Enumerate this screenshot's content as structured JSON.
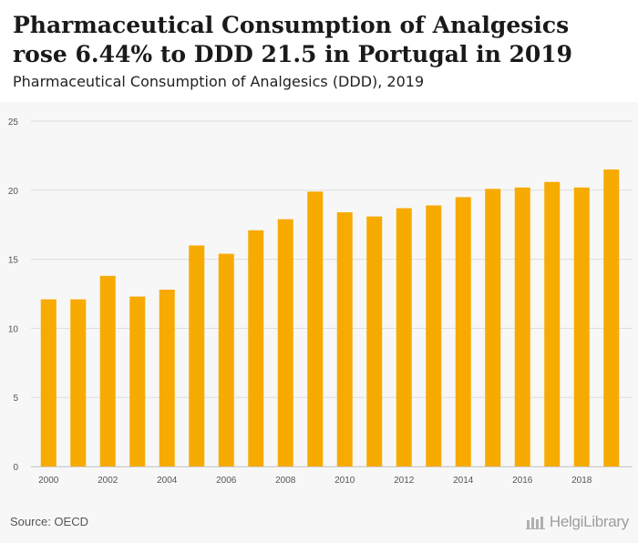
{
  "header": {
    "title": "Pharmaceutical Consumption of Analgesics rose 6.44% to DDD 21.5 in Portugal in 2019",
    "subtitle": "Pharmaceutical Consumption of Analgesics (DDD), 2019"
  },
  "footer": {
    "source": "Source: OECD",
    "brand": "HelgiLibrary"
  },
  "colors": {
    "bar": "#F7AA00",
    "grid": "#dddddd",
    "axis_text": "#555555"
  },
  "chart_data": {
    "type": "bar",
    "categories": [
      "2000",
      "2001",
      "2002",
      "2003",
      "2004",
      "2005",
      "2006",
      "2007",
      "2008",
      "2009",
      "2010",
      "2011",
      "2012",
      "2013",
      "2014",
      "2015",
      "2016",
      "2017",
      "2018",
      "2019"
    ],
    "tick_labels": [
      "2000",
      "2002",
      "2004",
      "2006",
      "2008",
      "2010",
      "2012",
      "2014",
      "2016",
      "2018"
    ],
    "values": [
      12.1,
      12.1,
      13.8,
      12.3,
      12.8,
      16.0,
      15.4,
      17.1,
      17.9,
      19.9,
      18.4,
      18.1,
      18.7,
      18.9,
      19.5,
      20.1,
      20.2,
      20.6,
      20.2,
      21.5
    ],
    "yticks": [
      0,
      5,
      10,
      15,
      20,
      25
    ],
    "ylim": [
      0,
      25
    ],
    "grid": true
  }
}
